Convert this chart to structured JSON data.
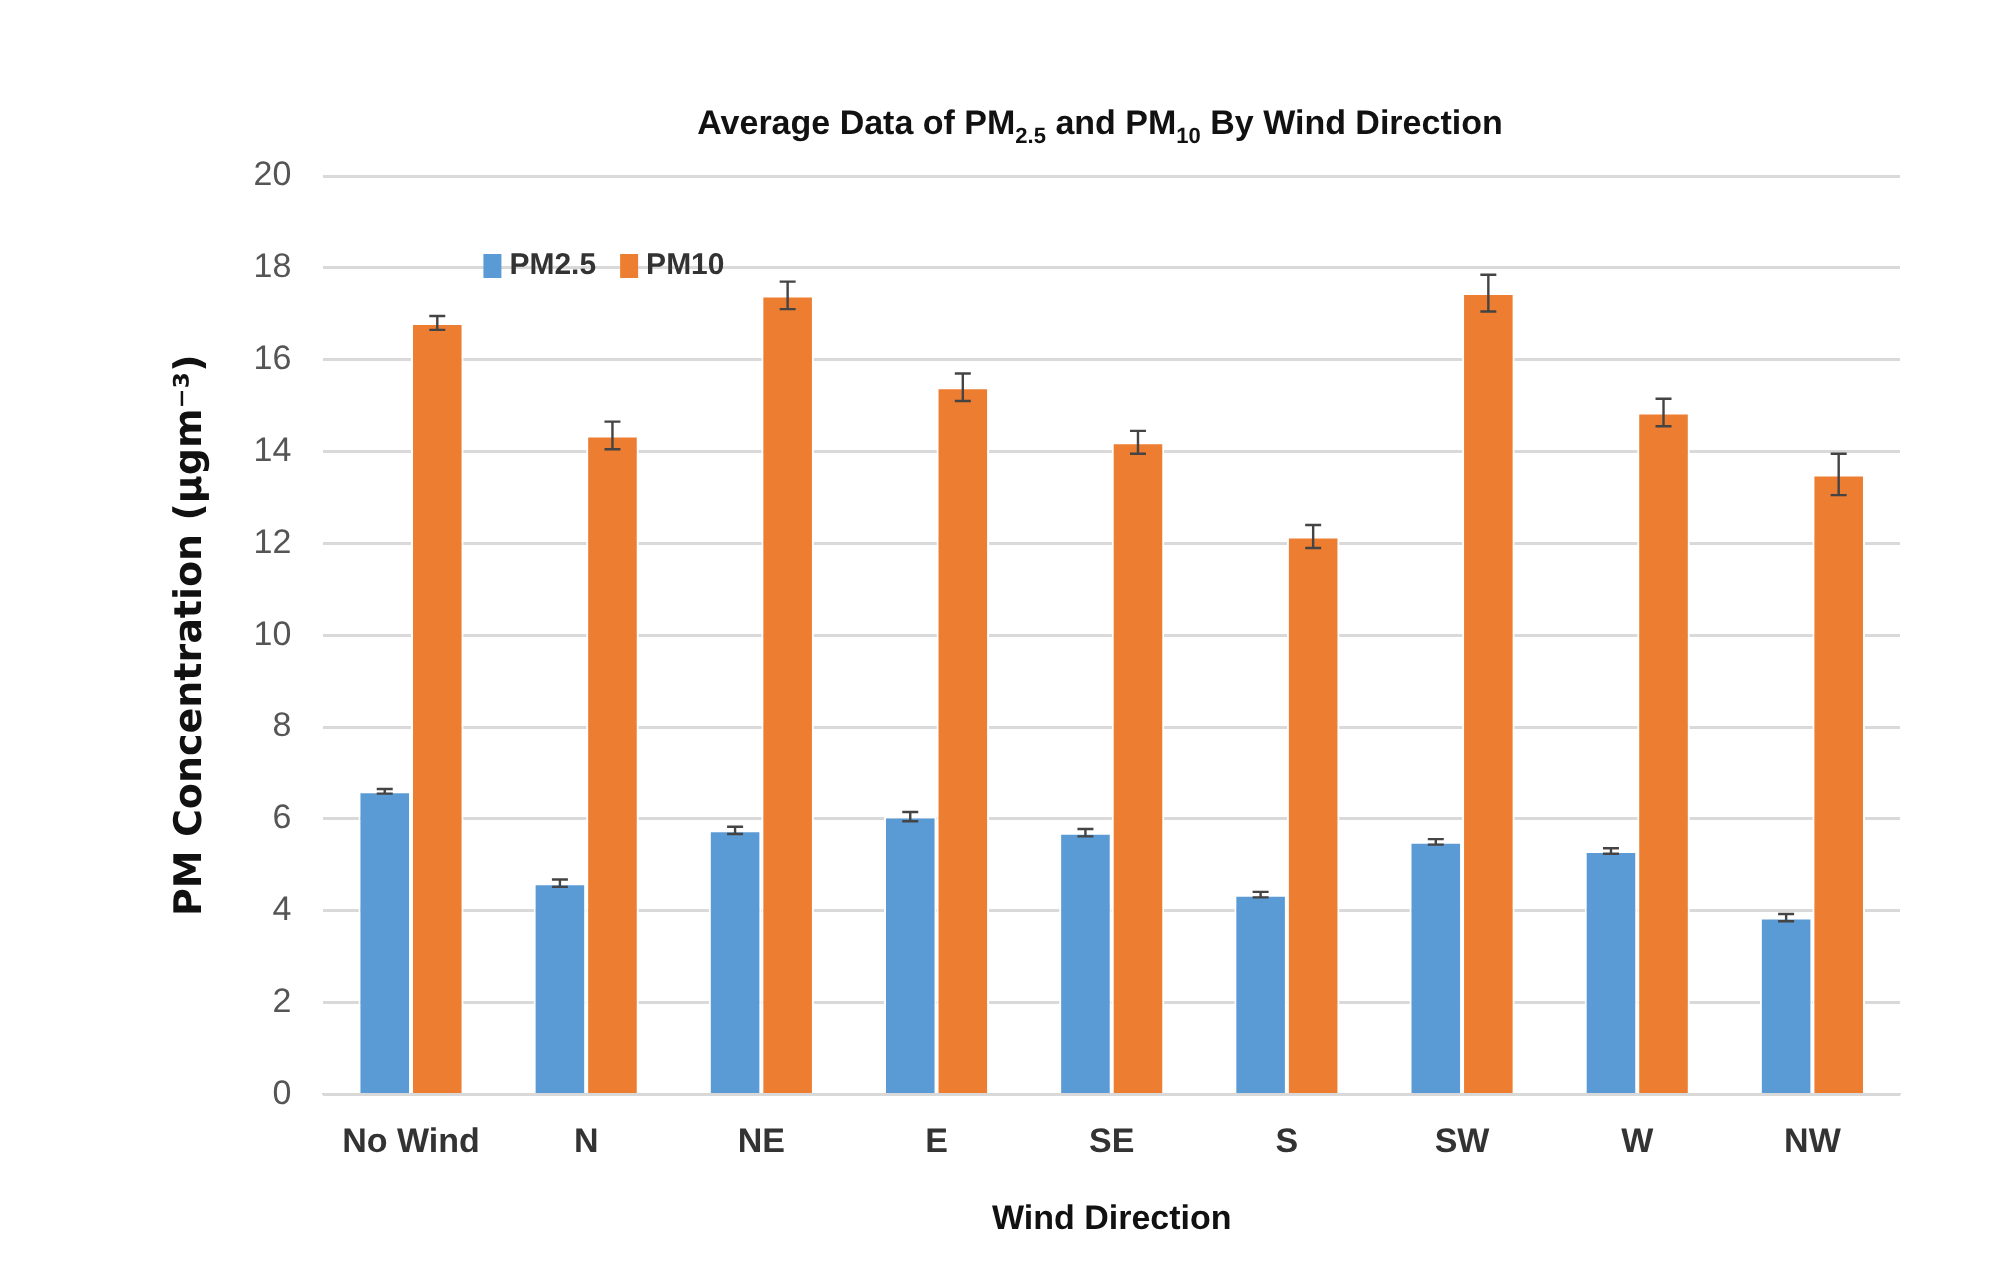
{
  "chart_data": {
    "type": "bar",
    "title": "Average Data of PM$_{2.5}$ and PM$_{10}$ By Wind Direction",
    "xlabel": "Wind Direction",
    "ylabel": "PM Concentration (µgm⁻³)",
    "categories": [
      "No Wind",
      "N",
      "NE",
      "E",
      "SE",
      "S",
      "SW",
      "W",
      "NW"
    ],
    "series": [
      {
        "name": "PM2.5",
        "color": "#5b9bd5",
        "values": [
          6.6,
          4.6,
          5.75,
          6.05,
          5.7,
          4.35,
          5.5,
          5.3,
          3.85
        ],
        "errors": [
          0.05,
          0.08,
          0.08,
          0.1,
          0.08,
          0.06,
          0.06,
          0.06,
          0.08
        ]
      },
      {
        "name": "PM10",
        "color": "#ed7d31",
        "values": [
          16.8,
          14.35,
          17.4,
          15.4,
          14.2,
          12.15,
          17.45,
          14.85,
          13.5
        ],
        "errors": [
          0.15,
          0.3,
          0.3,
          0.3,
          0.25,
          0.25,
          0.4,
          0.3,
          0.45
        ]
      }
    ],
    "ylim": [
      0,
      20
    ],
    "yticks": [
      0,
      2,
      4,
      6,
      8,
      10,
      12,
      14,
      16,
      18,
      20
    ],
    "grid": "y",
    "legend": "top left"
  }
}
